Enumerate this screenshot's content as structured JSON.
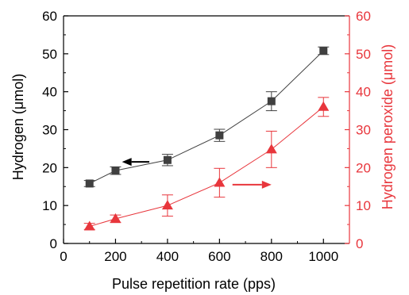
{
  "chart_data": {
    "type": "line",
    "title": "",
    "xlabel": "Pulse repetition rate (pps)",
    "ylabel": "Hydrogen (μmol)",
    "y2label": "Hydrogen peroxide (μmol)",
    "xlim": [
      0,
      1100
    ],
    "ylim": [
      0,
      60
    ],
    "y2lim": [
      0,
      60
    ],
    "xticks": [
      0,
      200,
      400,
      600,
      800,
      1000
    ],
    "yticks": [
      0,
      10,
      20,
      30,
      40,
      50,
      60
    ],
    "grid": false,
    "x": [
      100,
      200,
      400,
      600,
      800,
      1000
    ],
    "series": [
      {
        "axis": "left",
        "marker": "square",
        "color": "#404040",
        "values": [
          15.8,
          19.2,
          22.0,
          28.5,
          37.5,
          50.8
        ],
        "errors": [
          0.8,
          1.0,
          1.5,
          1.6,
          2.5,
          1.0
        ]
      },
      {
        "axis": "right",
        "marker": "triangle",
        "color": "#e8363c",
        "values": [
          4.5,
          6.5,
          10.0,
          16.0,
          24.8,
          36.0
        ],
        "errors": [
          0.8,
          1.0,
          2.8,
          3.8,
          4.8,
          2.5
        ]
      }
    ],
    "annotations": [
      {
        "type": "arrow",
        "direction": "left",
        "color": "#000000",
        "from_x": 330,
        "to_x": 225,
        "y": 21.5,
        "axis": "left"
      },
      {
        "type": "arrow",
        "direction": "right",
        "color": "#e8363c",
        "from_x": 650,
        "to_x": 800,
        "y": 15.5,
        "axis": "right"
      }
    ],
    "colors": {
      "left_axis": "#000000",
      "right_axis": "#e8363c"
    }
  }
}
